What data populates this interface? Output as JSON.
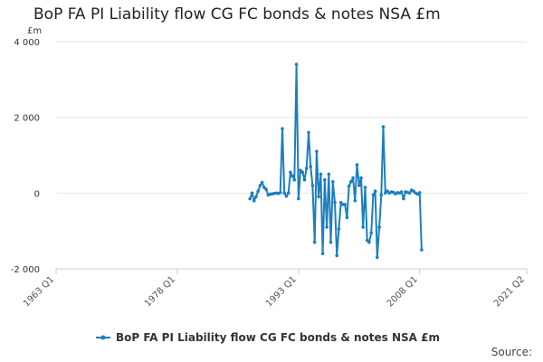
{
  "chart_data": {
    "type": "line",
    "title": "BoP FA PI Liability flow CG FC bonds & notes NSA £m",
    "unit_label": "£m",
    "ylim": [
      -2000,
      4000
    ],
    "yticks": [
      {
        "value": 4000,
        "label": "4 000"
      },
      {
        "value": 2000,
        "label": "2 000"
      },
      {
        "value": 0,
        "label": "0"
      },
      {
        "value": -2000,
        "label": "-2 000"
      }
    ],
    "xlim": [
      1963.0,
      2021.25
    ],
    "xticks": [
      {
        "value": 1963.0,
        "label": "1963 Q1"
      },
      {
        "value": 1978.0,
        "label": "1978 Q1"
      },
      {
        "value": 1993.0,
        "label": "1993 Q1"
      },
      {
        "value": 2008.0,
        "label": "2008 Q1"
      },
      {
        "value": 2021.25,
        "label": "2021 Q2"
      }
    ],
    "grid": true,
    "legend_position": "bottom",
    "source_label": "Source:",
    "series": [
      {
        "name": "BoP FA PI Liability flow CG FC bonds & notes NSA £m",
        "color": "#1c7fbf",
        "points": [
          [
            1987.0,
            -150
          ],
          [
            1987.25,
            0
          ],
          [
            1987.5,
            -200
          ],
          [
            1987.75,
            -100
          ],
          [
            1988.0,
            50
          ],
          [
            1988.25,
            200
          ],
          [
            1988.5,
            280
          ],
          [
            1988.75,
            150
          ],
          [
            1989.0,
            100
          ],
          [
            1989.25,
            -50
          ],
          [
            1989.5,
            -30
          ],
          [
            1989.75,
            -20
          ],
          [
            1990.0,
            -10
          ],
          [
            1990.25,
            0
          ],
          [
            1990.5,
            -10
          ],
          [
            1990.75,
            10
          ],
          [
            1991.0,
            1700
          ],
          [
            1991.25,
            0
          ],
          [
            1991.5,
            -80
          ],
          [
            1991.75,
            0
          ],
          [
            1992.0,
            550
          ],
          [
            1992.25,
            450
          ],
          [
            1992.5,
            350
          ],
          [
            1992.75,
            3400
          ],
          [
            1993.0,
            -150
          ],
          [
            1993.25,
            600
          ],
          [
            1993.5,
            550
          ],
          [
            1993.75,
            350
          ],
          [
            1994.0,
            650
          ],
          [
            1994.25,
            1600
          ],
          [
            1994.5,
            700
          ],
          [
            1994.75,
            200
          ],
          [
            1995.0,
            -1300
          ],
          [
            1995.25,
            1100
          ],
          [
            1995.5,
            -100
          ],
          [
            1995.75,
            500
          ],
          [
            1996.0,
            -1600
          ],
          [
            1996.25,
            350
          ],
          [
            1996.5,
            -900
          ],
          [
            1996.75,
            500
          ],
          [
            1997.0,
            -1300
          ],
          [
            1997.25,
            300
          ],
          [
            1997.5,
            -250
          ],
          [
            1997.75,
            -1650
          ],
          [
            1998.0,
            -950
          ],
          [
            1998.25,
            -250
          ],
          [
            1998.5,
            -300
          ],
          [
            1998.75,
            -300
          ],
          [
            1999.0,
            -650
          ],
          [
            1999.25,
            180
          ],
          [
            1999.5,
            300
          ],
          [
            1999.75,
            400
          ],
          [
            2000.0,
            -200
          ],
          [
            2000.25,
            750
          ],
          [
            2000.5,
            200
          ],
          [
            2000.75,
            400
          ],
          [
            2001.0,
            -900
          ],
          [
            2001.25,
            150
          ],
          [
            2001.5,
            -1250
          ],
          [
            2001.75,
            -1300
          ],
          [
            2002.0,
            -1050
          ],
          [
            2002.25,
            -50
          ],
          [
            2002.5,
            50
          ],
          [
            2002.75,
            -1700
          ],
          [
            2003.0,
            -900
          ],
          [
            2003.25,
            -50
          ],
          [
            2003.5,
            1750
          ],
          [
            2003.75,
            0
          ],
          [
            2004.0,
            50
          ],
          [
            2004.25,
            0
          ],
          [
            2004.5,
            30
          ],
          [
            2004.75,
            20
          ],
          [
            2005.0,
            -20
          ],
          [
            2005.25,
            10
          ],
          [
            2005.5,
            0
          ],
          [
            2005.75,
            30
          ],
          [
            2006.0,
            -150
          ],
          [
            2006.25,
            30
          ],
          [
            2006.5,
            20
          ],
          [
            2006.75,
            0
          ],
          [
            2007.0,
            80
          ],
          [
            2007.25,
            50
          ],
          [
            2007.5,
            0
          ],
          [
            2007.75,
            -30
          ],
          [
            2008.0,
            10
          ],
          [
            2008.25,
            -1500
          ]
        ]
      }
    ]
  }
}
